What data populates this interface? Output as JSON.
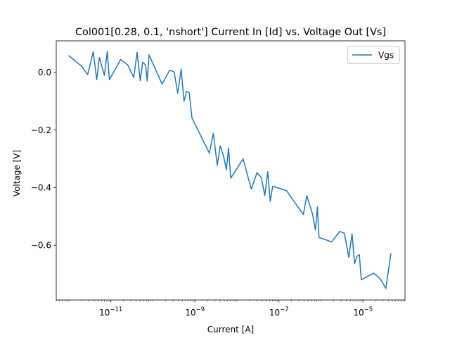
{
  "chart_data": {
    "type": "line",
    "title": "Col001[0.28, 0.1, 'nshort'] Current In [Id] vs. Voltage Out [Vs]",
    "xlabel": "Current [A]",
    "ylabel": "Voltage [V]",
    "xscale": "log",
    "xlim": [
      5e-13,
      0.0001
    ],
    "ylim": [
      -0.79,
      0.11
    ],
    "xticks": [
      {
        "value": 1e-11,
        "base": "10",
        "exp": "−11"
      },
      {
        "value": 1e-09,
        "base": "10",
        "exp": "−9"
      },
      {
        "value": 1e-07,
        "base": "10",
        "exp": "−7"
      },
      {
        "value": 1e-05,
        "base": "10",
        "exp": "−5"
      }
    ],
    "yticks": [
      {
        "value": 0.0,
        "label": "0.0"
      },
      {
        "value": -0.2,
        "label": "−0.2"
      },
      {
        "value": -0.4,
        "label": "−0.4"
      },
      {
        "value": -0.6,
        "label": "−0.6"
      }
    ],
    "legend": {
      "placement": "top-right"
    },
    "grid": false,
    "series": [
      {
        "name": "Vgs",
        "color": "#1f77b4",
        "points": [
          [
            1e-12,
            0.058
          ],
          [
            2e-12,
            0.022
          ],
          [
            2.8e-12,
            -0.007
          ],
          [
            3.8e-12,
            0.072
          ],
          [
            4.6e-12,
            -0.025
          ],
          [
            5.3e-12,
            0.052
          ],
          [
            7e-12,
            -0.01
          ],
          [
            8.2e-12,
            0.073
          ],
          [
            9.2e-12,
            -0.025
          ],
          [
            1.7e-11,
            0.045
          ],
          [
            2.5e-11,
            0.027
          ],
          [
            3.5e-11,
            -0.017
          ],
          [
            4.2e-11,
            0.07
          ],
          [
            5e-11,
            -0.029
          ],
          [
            5.7e-11,
            0.036
          ],
          [
            6.7e-11,
            0.026
          ],
          [
            7.3e-11,
            -0.03
          ],
          [
            8.1e-11,
            0.061
          ],
          [
            1.65e-10,
            -0.04
          ],
          [
            2.5e-10,
            0.008
          ],
          [
            3.2e-10,
            0.002
          ],
          [
            3.9e-10,
            -0.072
          ],
          [
            4.7e-10,
            0.012
          ],
          [
            5.5e-10,
            -0.1
          ],
          [
            6.3e-10,
            -0.065
          ],
          [
            7.3e-10,
            -0.07
          ],
          [
            8.5e-10,
            -0.158
          ],
          [
            2.2e-09,
            -0.28
          ],
          [
            2.75e-09,
            -0.212
          ],
          [
            3.4e-09,
            -0.322
          ],
          [
            4e-09,
            -0.255
          ],
          [
            4.8e-09,
            -0.29
          ],
          [
            5.6e-09,
            -0.338
          ],
          [
            6.3e-09,
            -0.262
          ],
          [
            7.1e-09,
            -0.367
          ],
          [
            1.4e-08,
            -0.3
          ],
          [
            2.2e-08,
            -0.405
          ],
          [
            3e-08,
            -0.348
          ],
          [
            3.8e-08,
            -0.365
          ],
          [
            4.6e-08,
            -0.427
          ],
          [
            5.4e-08,
            -0.345
          ],
          [
            6.2e-08,
            -0.447
          ],
          [
            7.1e-08,
            -0.395
          ],
          [
            1.5e-07,
            -0.41
          ],
          [
            3.8e-07,
            -0.493
          ],
          [
            4.6e-07,
            -0.428
          ],
          [
            6.3e-07,
            -0.492
          ],
          [
            7.4e-07,
            -0.547
          ],
          [
            8.2e-07,
            -0.467
          ],
          [
            9e-07,
            -0.573
          ],
          [
            1.8e-06,
            -0.588
          ],
          [
            2.8e-06,
            -0.552
          ],
          [
            3.6e-06,
            -0.558
          ],
          [
            4.6e-06,
            -0.642
          ],
          [
            5.5e-06,
            -0.56
          ],
          [
            6.3e-06,
            -0.664
          ],
          [
            7.2e-06,
            -0.638
          ],
          [
            8.2e-06,
            -0.633
          ],
          [
            9.1e-06,
            -0.72
          ],
          [
            1.8e-05,
            -0.697
          ],
          [
            2.6e-05,
            -0.717
          ],
          [
            3.5e-05,
            -0.75
          ],
          [
            4.6e-05,
            -0.63
          ]
        ]
      }
    ]
  }
}
